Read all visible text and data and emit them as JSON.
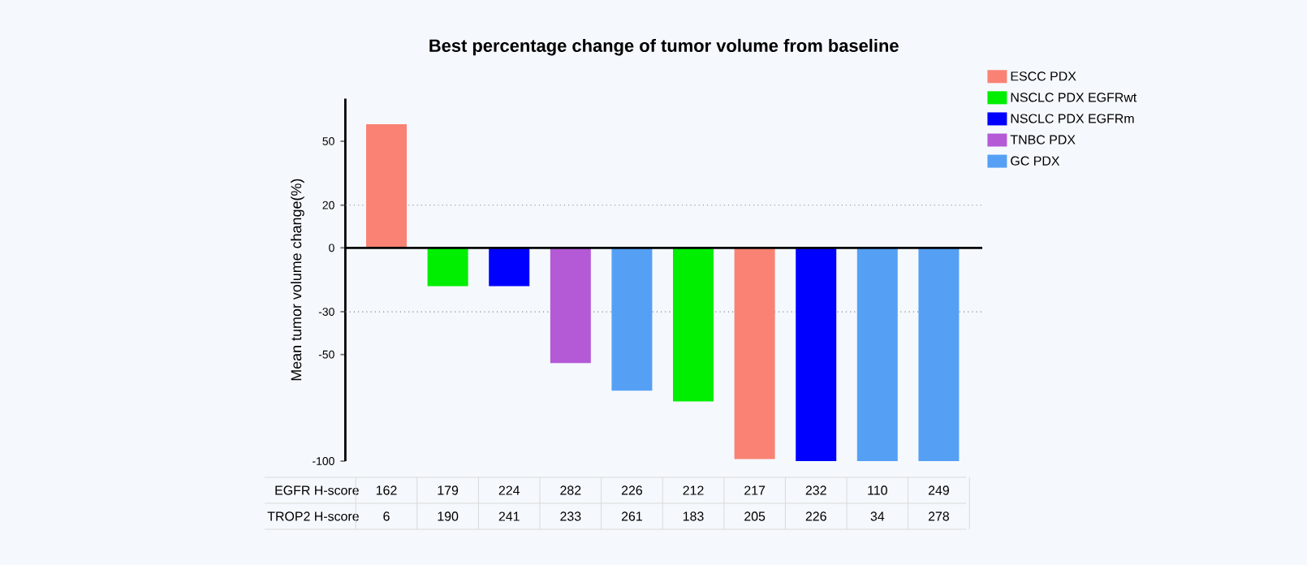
{
  "chart_data": {
    "type": "bar",
    "title": "Best percentage change of tumor volume from baseline",
    "ylabel": "Mean tumor volume change(%)",
    "categories": [
      null,
      null,
      null,
      null,
      null,
      null,
      null,
      null,
      null,
      null
    ],
    "series": [
      {
        "name": "ESCC PDX",
        "color": "#fa8274",
        "values": [
          58,
          null,
          null,
          null,
          null,
          null,
          -99,
          null,
          null,
          null
        ]
      },
      {
        "name": "NSCLC PDX EGFRwt",
        "color": "#00ee00",
        "values": [
          null,
          -18,
          null,
          null,
          null,
          -72,
          null,
          null,
          null,
          null
        ]
      },
      {
        "name": "NSCLC PDX EGFRm",
        "color": "#0000ff",
        "values": [
          null,
          null,
          -18,
          null,
          null,
          null,
          null,
          -100,
          null,
          null
        ]
      },
      {
        "name": "TNBC PDX",
        "color": "#b45ad6",
        "values": [
          null,
          null,
          null,
          -54,
          null,
          null,
          null,
          null,
          null,
          null
        ]
      },
      {
        "name": "GC PDX",
        "color": "#55a0f5",
        "values": [
          null,
          null,
          null,
          null,
          -67,
          null,
          null,
          null,
          -100,
          -100
        ]
      }
    ],
    "ylim": [
      -100,
      70
    ],
    "yticks": [
      -100,
      -50,
      -30,
      0,
      20,
      50
    ],
    "ref_lines": [
      {
        "axis": "y",
        "value": 20,
        "color": "#888888",
        "line_style": "dotted"
      },
      {
        "axis": "y",
        "value": -30,
        "color": "#888888",
        "line_style": "dotted"
      }
    ],
    "legend": "top right",
    "annotations": [
      "EGFR H-score",
      "162",
      "179",
      "224",
      "282",
      "226",
      "212",
      "217",
      "232",
      "110",
      "249",
      "TROP2 H-score",
      "6",
      "190",
      "241",
      "233",
      "261",
      "183",
      "205",
      "226",
      "34",
      "278"
    ]
  }
}
